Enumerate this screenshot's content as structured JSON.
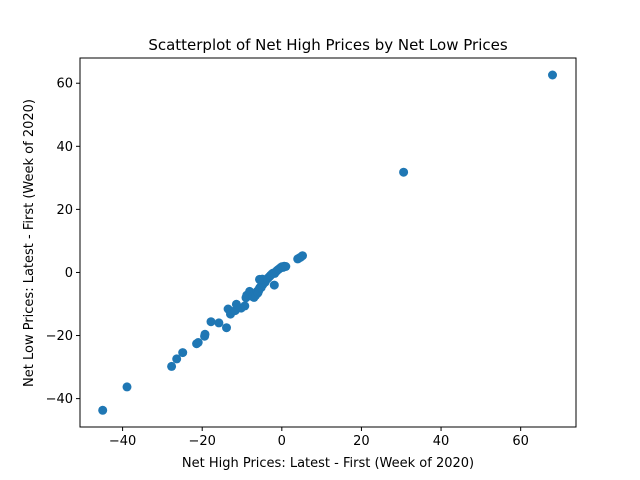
{
  "chart_data": {
    "type": "scatter",
    "title": "Scatterplot of Net High Prices by Net Low Prices",
    "xlabel": "Net High Prices: Latest - First (Week of 2020)",
    "ylabel": "Net Low Prices: Latest - First (Week of 2020)",
    "xlim": [
      -50.7,
      73.9
    ],
    "ylim": [
      -49.0,
      68.0
    ],
    "xticks": [
      -40,
      -20,
      0,
      20,
      40,
      60
    ],
    "yticks": [
      -40,
      -20,
      0,
      20,
      40,
      60
    ],
    "xtick_labels": [
      "−40",
      "−20",
      "0",
      "20",
      "40",
      "60"
    ],
    "ytick_labels": [
      "−40",
      "−20",
      "0",
      "20",
      "40",
      "60"
    ],
    "grid": false,
    "marker_color": "#1f77b4",
    "series": [
      {
        "x": [
          -45.0,
          -38.9,
          -27.7,
          -26.4,
          -24.9,
          -21.4,
          -21.0,
          -19.4,
          -19.3,
          -17.8,
          -15.8,
          -13.9,
          -13.5,
          -12.9,
          -11.7,
          -11.4,
          -10.2,
          -9.3,
          -9.0,
          -8.8,
          -8.1,
          -7.4,
          -7.0,
          -6.6,
          -6.2,
          -6.0,
          -5.8,
          -5.6,
          -5.4,
          -5.2,
          -5.0,
          -4.8,
          -4.6,
          -4.4,
          -4.2,
          -4.0,
          -3.7,
          -3.4,
          -3.1,
          -2.8,
          -2.5,
          -2.2,
          -1.8,
          -1.5,
          -1.2,
          -0.9,
          -0.6,
          -0.3,
          0.0,
          0.3,
          0.6,
          1.0,
          4.0,
          4.4,
          4.8,
          5.2,
          30.6,
          68.0,
          -4.9,
          -5.6,
          -1.9
        ],
        "y": [
          -43.7,
          -36.3,
          -29.8,
          -27.4,
          -25.4,
          -22.6,
          -22.2,
          -20.2,
          -19.6,
          -15.6,
          -16.0,
          -17.5,
          -11.6,
          -13.2,
          -12.1,
          -10.1,
          -11.3,
          -10.6,
          -8.0,
          -7.2,
          -6.0,
          -7.6,
          -7.9,
          -7.3,
          -6.0,
          -6.5,
          -5.8,
          -5.0,
          -4.6,
          -4.8,
          -4.1,
          -3.9,
          -3.4,
          -2.8,
          -3.1,
          -2.4,
          -2.1,
          -1.7,
          -1.3,
          -0.9,
          -0.5,
          -0.2,
          -0.3,
          0.2,
          0.6,
          0.9,
          1.2,
          1.5,
          1.8,
          1.6,
          2.0,
          1.9,
          4.3,
          4.6,
          4.9,
          5.3,
          31.8,
          62.6,
          -2.1,
          -2.2,
          -4.0
        ]
      }
    ]
  }
}
